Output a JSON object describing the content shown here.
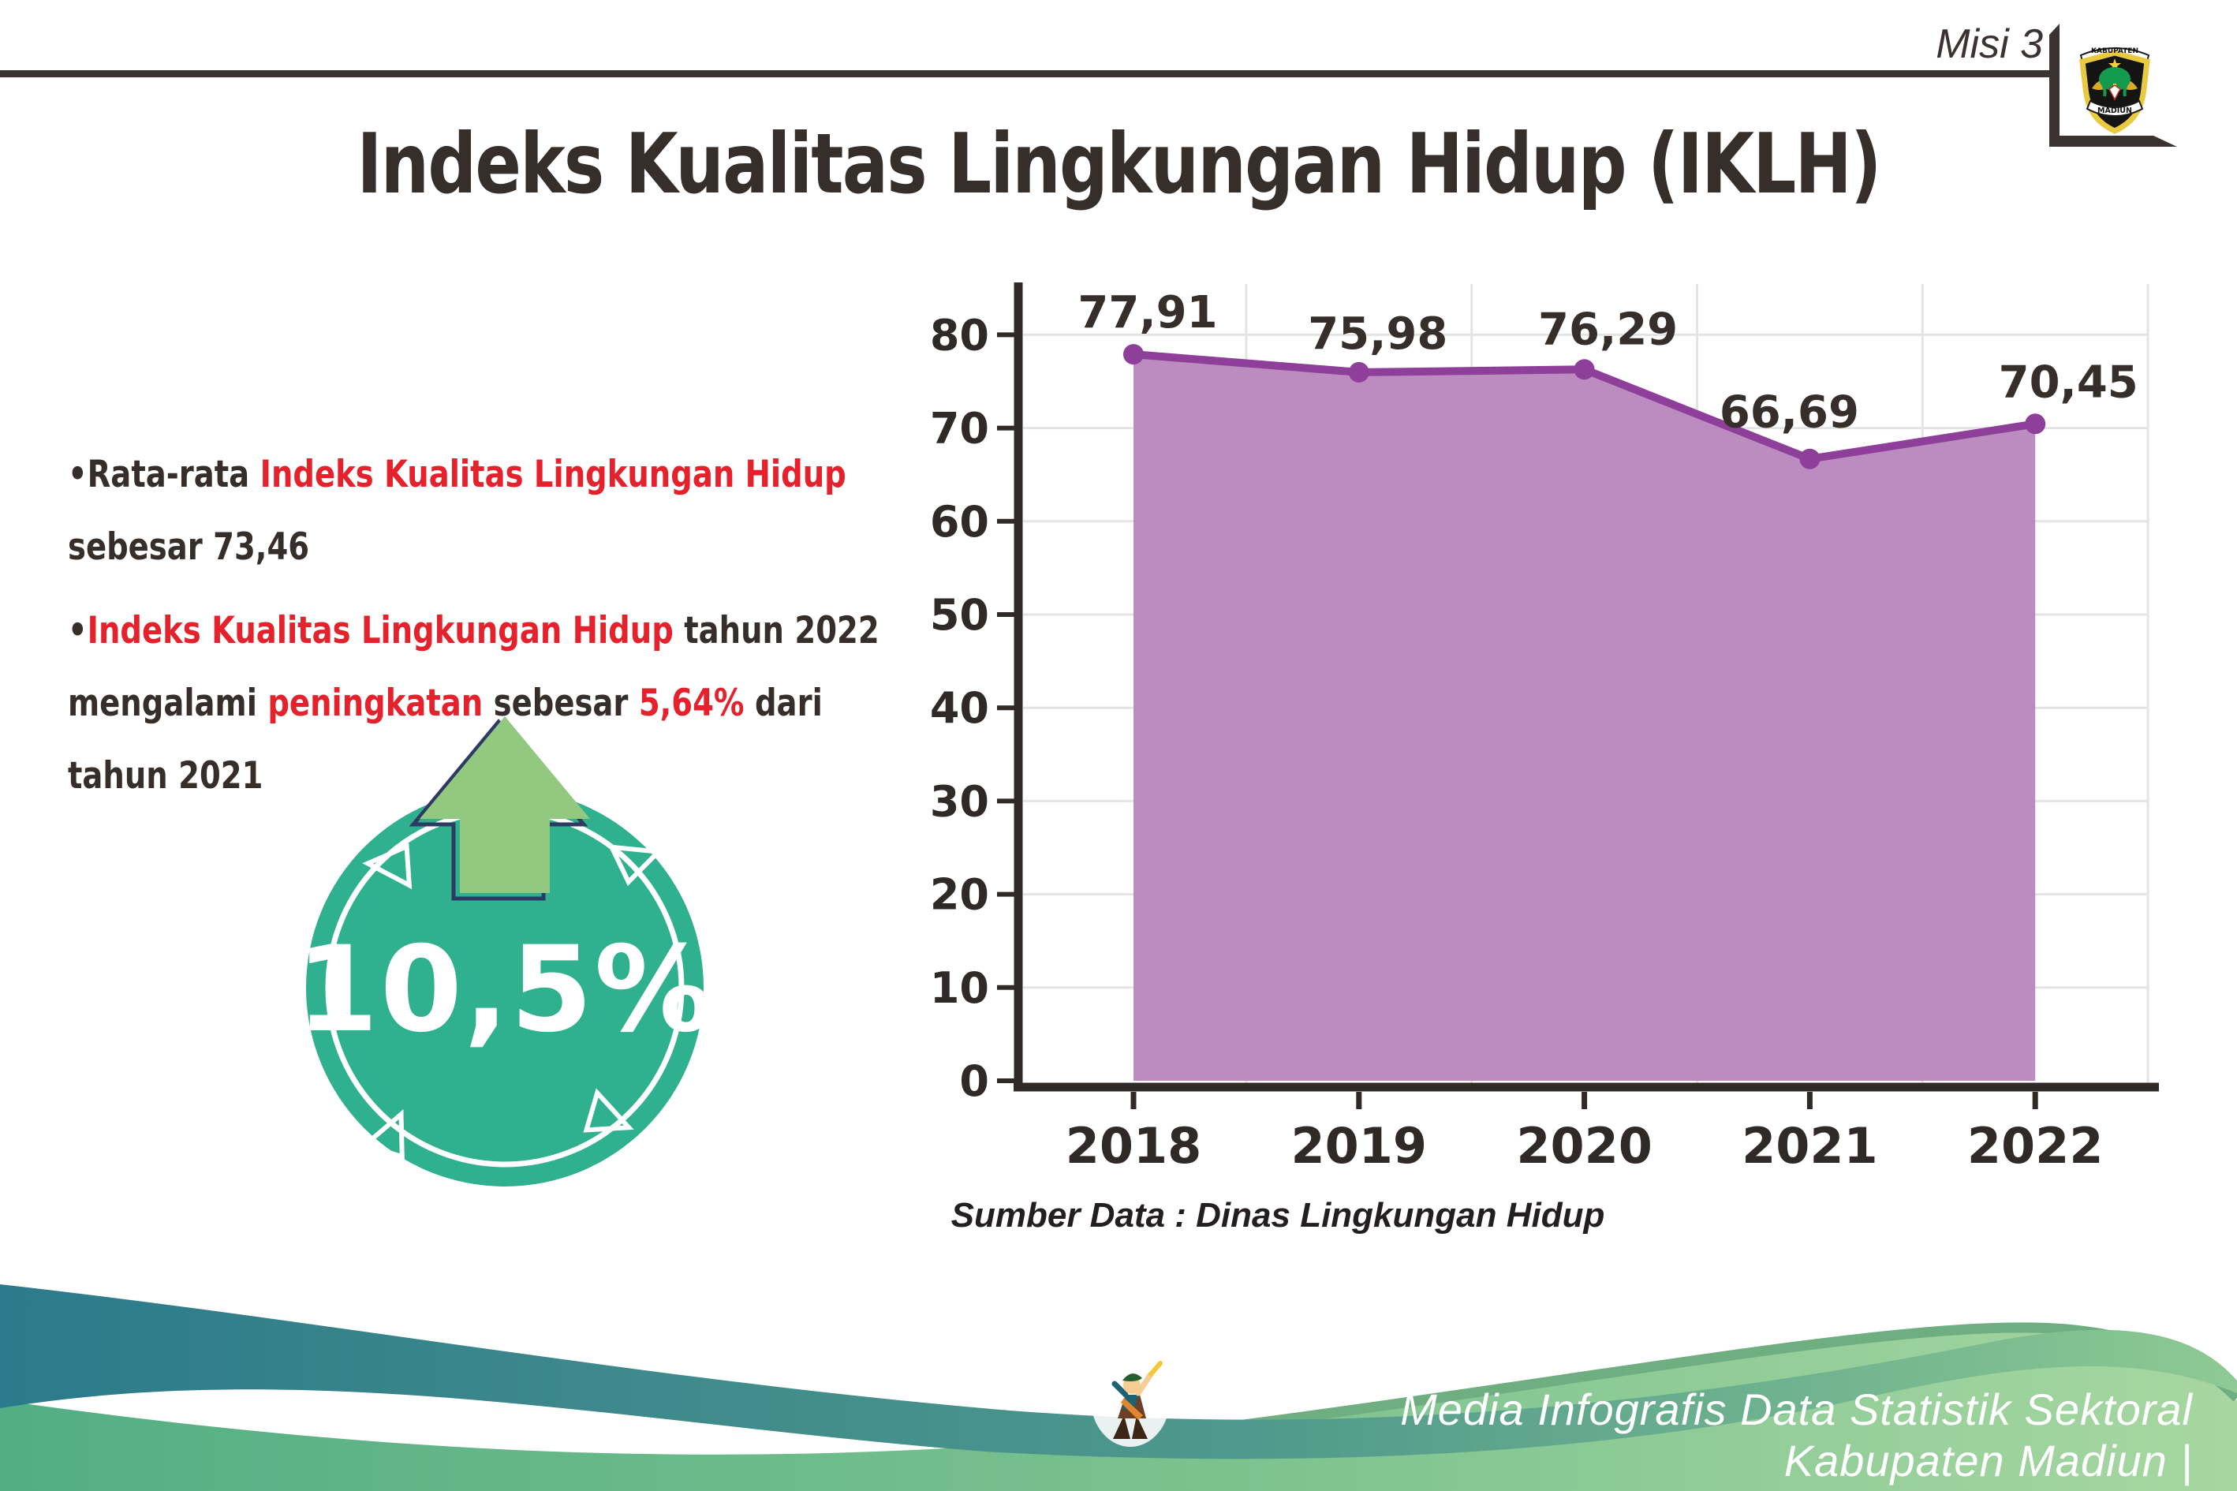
{
  "header": {
    "misi_label": "Misi 3",
    "logo": {
      "top_text": "KABUPATEN",
      "bottom_text": "MADIUN"
    }
  },
  "title": "Indeks Kualitas Lingkungan Hidup (IKLH)",
  "bullets": [
    {
      "segments": [
        {
          "t": "•Rata-rata ",
          "c": "dark"
        },
        {
          "t": "Indeks Kualitas Lingkungan Hidup",
          "c": "red"
        },
        {
          "t": " sebesar 73,46",
          "c": "dark"
        }
      ]
    },
    {
      "segments": [
        {
          "t": "•",
          "c": "dark"
        },
        {
          "t": "Indeks Kualitas Lingkungan Hidup",
          "c": "red"
        },
        {
          "t": " tahun 2022 mengalami ",
          "c": "dark"
        },
        {
          "t": "peningkatan",
          "c": "red"
        },
        {
          "t": " sebesar ",
          "c": "dark"
        },
        {
          "t": "5,64%",
          "c": "red"
        },
        {
          "t": " dari tahun 2021",
          "c": "dark"
        }
      ]
    }
  ],
  "badge": {
    "value": "10,5%"
  },
  "chart_data": {
    "type": "area",
    "categories": [
      "2018",
      "2019",
      "2020",
      "2021",
      "2022"
    ],
    "values": [
      77.91,
      75.98,
      76.29,
      66.69,
      70.45
    ],
    "point_labels": [
      "77,91",
      "75,98",
      "76,29",
      "66,69",
      "70,45"
    ],
    "ylim": [
      0,
      85
    ],
    "yticks": [
      0,
      10,
      20,
      30,
      40,
      50,
      60,
      70,
      80
    ],
    "grid": true,
    "legend": false,
    "title": "",
    "xlabel": "",
    "ylabel": "",
    "source_note": "Sumber Data : Dinas Lingkungan Hidup",
    "area_color": "#b886bd",
    "line_color": "#8d3f99",
    "label_color": "#362e2b",
    "axis_color": "#2f2a28"
  },
  "footer": {
    "credit": "Media Infografis Data Statistik Sektoral Kabupaten Madiun |"
  },
  "colors": {
    "accent_red": "#e5212b",
    "text_dark": "#362e2b",
    "badge_teal": "#2fb08f",
    "arrow_green": "#92c87f",
    "arrow_outline": "#2e3a63",
    "footer_teal": "#2c7a8b",
    "footer_green": "#a7d7a1",
    "rule_dark": "#3a3331"
  }
}
